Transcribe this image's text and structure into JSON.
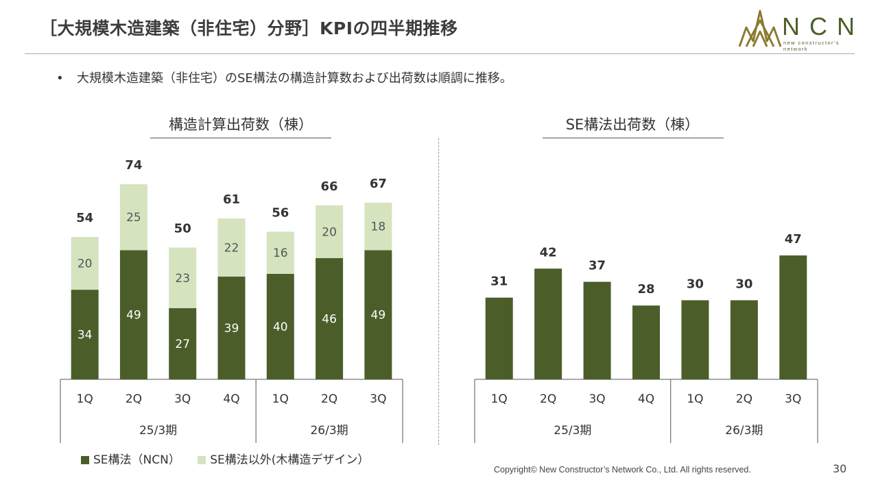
{
  "header": {
    "title": "［大規模木造建築（非住宅）分野］KPIの四半期推移"
  },
  "logo": {
    "wordmark": "NCN",
    "tagline": "new constructor's network"
  },
  "bullet": {
    "marker": "•",
    "text": "大規模木造建築（非住宅）のSE構法の構造計算数および出荷数は順調に推移。"
  },
  "colors": {
    "dark": "#4b5e2a",
    "light": "#d5e3bf",
    "axis": "#555555"
  },
  "chart_data": [
    {
      "type": "bar",
      "stacked": true,
      "title": "構造計算出荷数（棟）",
      "categories": [
        "1Q",
        "2Q",
        "3Q",
        "4Q",
        "1Q",
        "2Q",
        "3Q"
      ],
      "groups": [
        {
          "label": "25/3期",
          "count": 4
        },
        {
          "label": "26/3期",
          "count": 3
        }
      ],
      "series": [
        {
          "name": "SE構法（NCN）",
          "values": [
            34,
            49,
            27,
            39,
            40,
            46,
            49
          ]
        },
        {
          "name": "SE構法以外(木構造デザイン）",
          "values": [
            20,
            25,
            23,
            22,
            16,
            20,
            18
          ]
        }
      ],
      "totals": [
        54,
        74,
        50,
        61,
        56,
        66,
        67
      ],
      "ylim": [
        0,
        80
      ]
    },
    {
      "type": "bar",
      "stacked": false,
      "title": "SE構法出荷数（棟）",
      "categories": [
        "1Q",
        "2Q",
        "3Q",
        "4Q",
        "1Q",
        "2Q",
        "3Q"
      ],
      "groups": [
        {
          "label": "25/3期",
          "count": 4
        },
        {
          "label": "26/3期",
          "count": 3
        }
      ],
      "series": [
        {
          "name": "SE構法出荷数",
          "values": [
            31,
            42,
            37,
            28,
            30,
            30,
            47
          ]
        }
      ],
      "ylim": [
        0,
        80
      ]
    }
  ],
  "legend": [
    {
      "label": "SE構法（NCN）",
      "color": "#4b5e2a"
    },
    {
      "label": "SE構法以外(木構造デザイン）",
      "color": "#d5e3bf"
    }
  ],
  "footer": {
    "copyright": "Copyright© New Constructor’s Network Co., Ltd. All rights reserved.",
    "page": "30"
  }
}
